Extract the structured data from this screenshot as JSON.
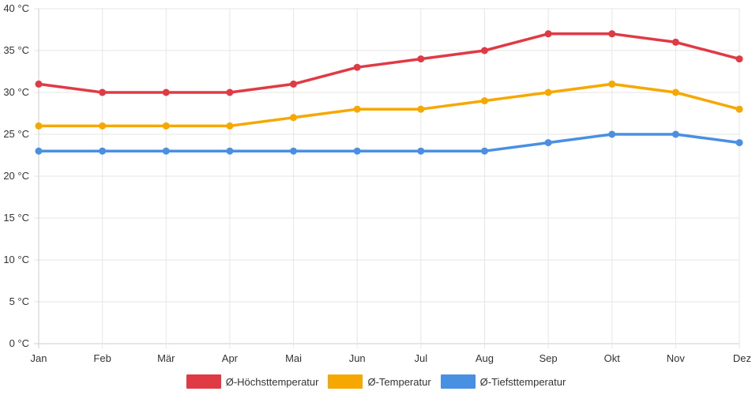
{
  "chart_data": {
    "type": "line",
    "categories": [
      "Jan",
      "Feb",
      "Mär",
      "Apr",
      "Mai",
      "Jun",
      "Jul",
      "Aug",
      "Sep",
      "Okt",
      "Nov",
      "Dez"
    ],
    "ylim": [
      0,
      40
    ],
    "yticks": [
      0,
      5,
      10,
      15,
      20,
      25,
      30,
      35,
      40
    ],
    "y_tick_suffix": " °C",
    "grid": true,
    "legend_position": "bottom",
    "series": [
      {
        "name": "Ø-Höchsttemperatur",
        "color": "#e03a45",
        "values": [
          31,
          30,
          30,
          30,
          31,
          33,
          34,
          35,
          37,
          37,
          36,
          34
        ]
      },
      {
        "name": "Ø-Temperatur",
        "color": "#f7a800",
        "values": [
          26,
          26,
          26,
          26,
          27,
          28,
          28,
          29,
          30,
          31,
          30,
          28
        ]
      },
      {
        "name": "Ø-Tiefsttemperatur",
        "color": "#4a90e2",
        "values": [
          23,
          23,
          23,
          23,
          23,
          23,
          23,
          23,
          24,
          25,
          25,
          24
        ]
      }
    ]
  }
}
